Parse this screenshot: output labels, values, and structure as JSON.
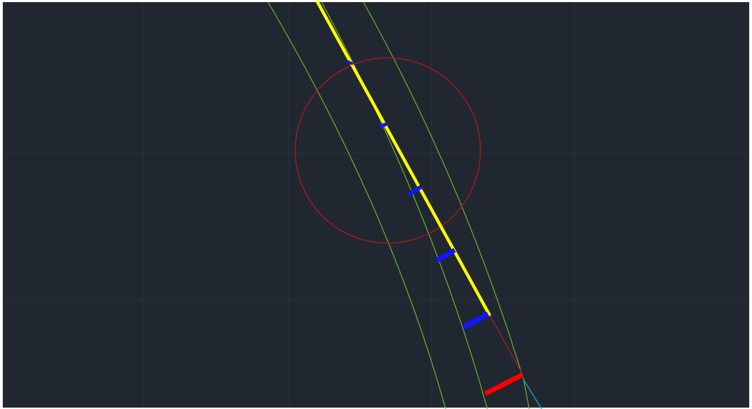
{
  "canvas": {
    "background_color": "#212730",
    "frame_color": "#ffffff",
    "grid_color": "#2a313b"
  },
  "colors": {
    "yellow": "#ffff00",
    "green": "#6fb52a",
    "blue": "#1414ff",
    "red": "#ff0000",
    "dark_red": "#b21e25",
    "circle": "#9a1a20",
    "cyan": "#16a6b6"
  }
}
